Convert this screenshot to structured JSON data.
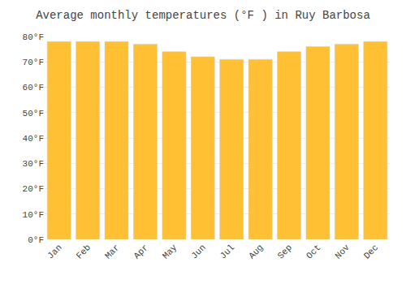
{
  "chart_data": {
    "type": "bar",
    "title": "Average monthly temperatures (°F ) in Ruy Barbosa",
    "categories": [
      "Jan",
      "Feb",
      "Mar",
      "Apr",
      "May",
      "Jun",
      "Jul",
      "Aug",
      "Sep",
      "Oct",
      "Nov",
      "Dec"
    ],
    "values": [
      78,
      78,
      78,
      77,
      74,
      72,
      71,
      71,
      74,
      76,
      77,
      78
    ],
    "color": "#FFC133",
    "ylim": [
      0,
      80
    ],
    "yticks": [
      {
        "value": 0,
        "label": "0°F"
      },
      {
        "value": 10,
        "label": "10°F"
      },
      {
        "value": 20,
        "label": "20°F"
      },
      {
        "value": 30,
        "label": "30°F"
      },
      {
        "value": 40,
        "label": "40°F"
      },
      {
        "value": 50,
        "label": "50°F"
      },
      {
        "value": 60,
        "label": "60°F"
      },
      {
        "value": 70,
        "label": "70°F"
      },
      {
        "value": 80,
        "label": "80°F"
      }
    ],
    "grid": true
  }
}
